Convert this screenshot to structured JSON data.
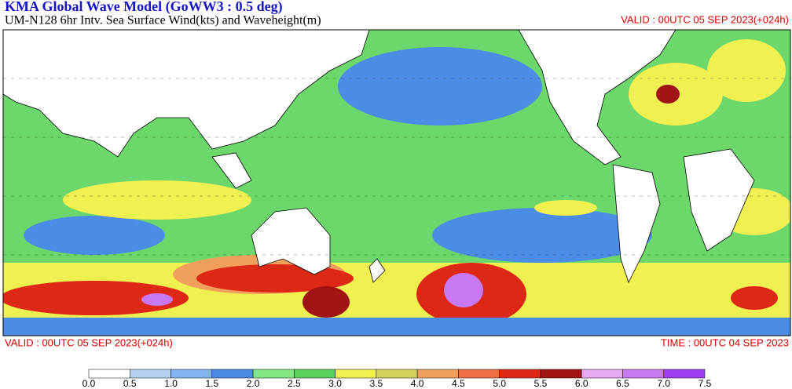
{
  "header": {
    "title": "KMA  Global Wave Model (GoWW3 : 0.5 deg)",
    "subtitle": "UM-N128  6hr Intv. Sea Surface Wind(kts) and Waveheight(m)",
    "valid": "VALID : 00UTC 05 SEP 2023(+024h)"
  },
  "footer": {
    "valid": "VALID : 00UTC 05 SEP 2023(+024h)",
    "time": "TIME : 00UTC 04 SEP 2023"
  },
  "colorbar": {
    "labels": [
      "0.0",
      "0.5",
      "1.0",
      "1.5",
      "2.0",
      "2.5",
      "3.0",
      "3.5",
      "4.0",
      "4.5",
      "5.0",
      "5.5",
      "6.0",
      "6.5",
      "7.0",
      "7.5"
    ],
    "colors": [
      "#ffffff",
      "#b4d2f0",
      "#82b4f0",
      "#4b8ce6",
      "#82e682",
      "#5ad25a",
      "#f0f050",
      "#d2d25a",
      "#f0a05a",
      "#f06e46",
      "#dc2814",
      "#a01414",
      "#e6aaf0",
      "#c878f0",
      "#a03cf0"
    ]
  }
}
